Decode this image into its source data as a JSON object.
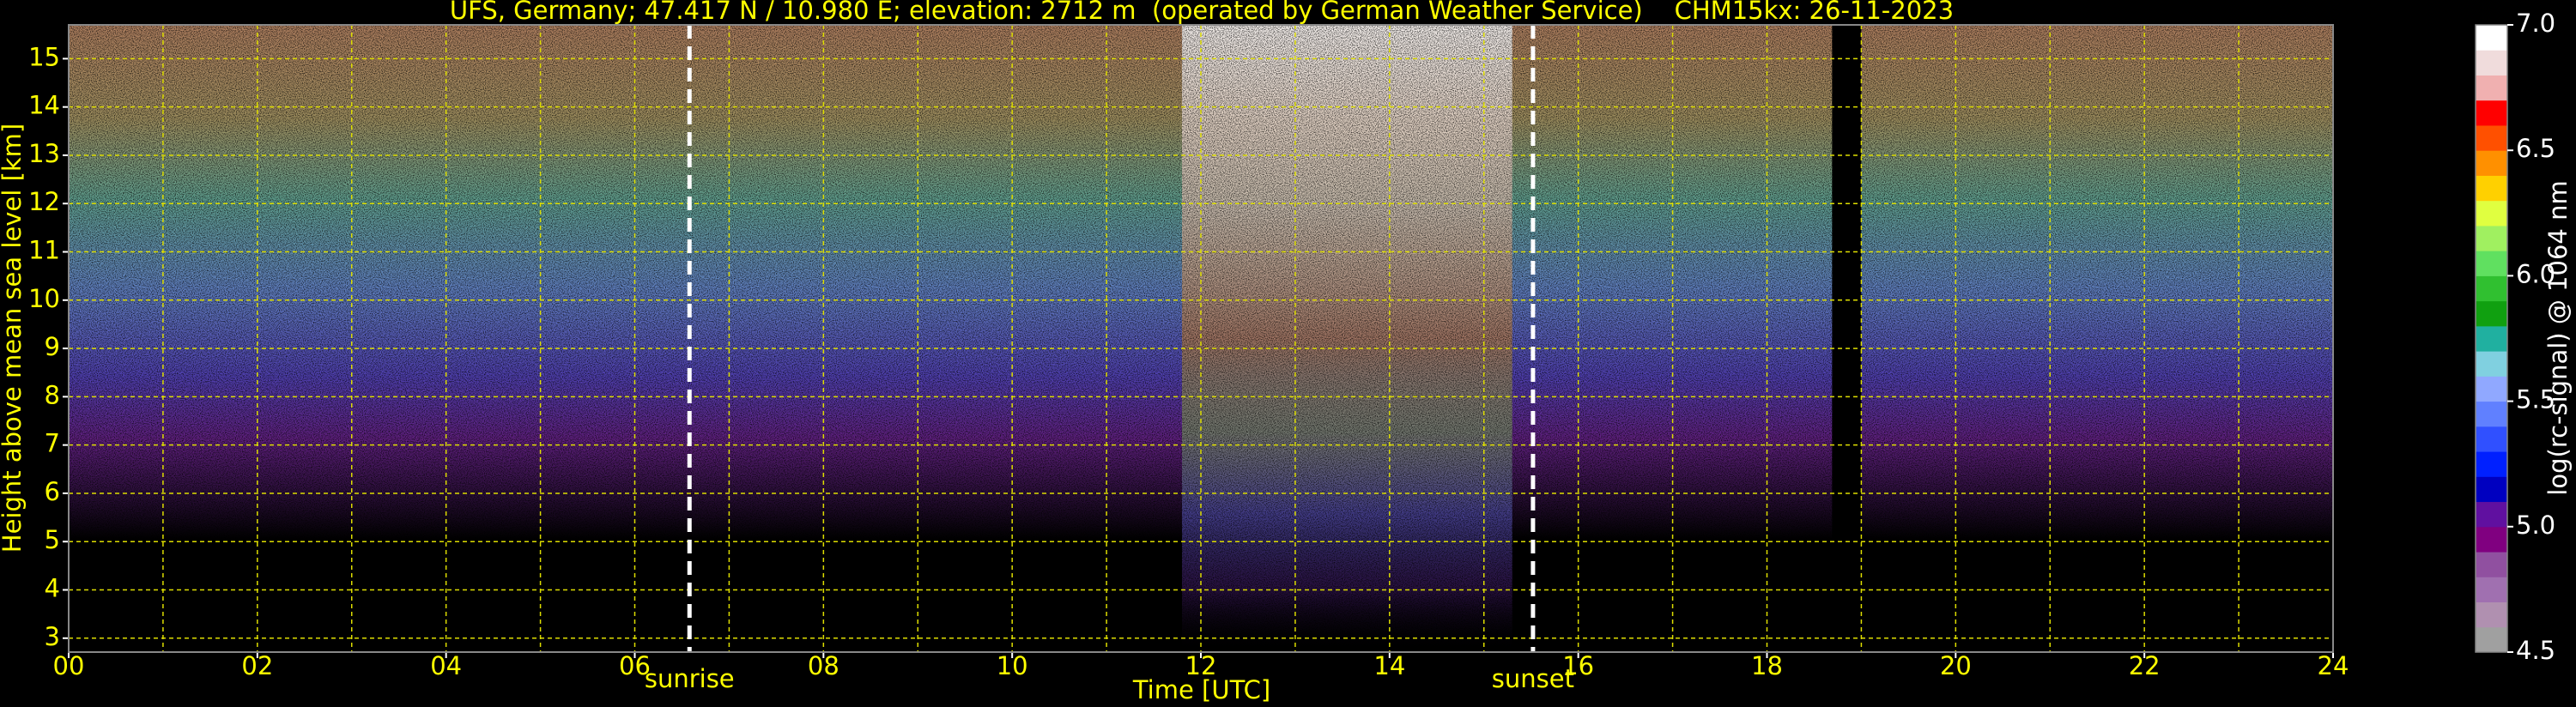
{
  "chart_data": {
    "type": "heatmap",
    "title": "UFS, Germany; 47.417 N / 10.980 E; elevation: 2712 m  (operated by German Weather Service)    CHM15kx: 26-11-2023",
    "x_label": "Time [UTC]",
    "y_label": "Height above mean sea level [km]",
    "xlim": [
      0,
      24
    ],
    "xticks": [
      {
        "value": 0,
        "label": "00"
      },
      {
        "value": 2,
        "label": "02"
      },
      {
        "value": 4,
        "label": "04"
      },
      {
        "value": 6,
        "label": "06"
      },
      {
        "value": 8,
        "label": "08"
      },
      10,
      12,
      14,
      16,
      18,
      20,
      22,
      24
    ],
    "x_minor_grid": [
      1,
      3,
      5,
      7,
      9,
      11,
      13,
      15,
      17,
      19,
      21,
      23
    ],
    "ylim": [
      2.712,
      15.7
    ],
    "yticks": [
      3,
      4,
      5,
      6,
      7,
      8,
      9,
      10,
      11,
      12,
      13,
      14,
      15
    ],
    "grid": true,
    "annotations": [
      {
        "text": "sunrise",
        "x": 6.58
      },
      {
        "text": "sunset",
        "x": 15.52
      }
    ],
    "missing_data": [
      18.69,
      19.0
    ],
    "colorbar": {
      "label": "log(rc-signal) @ 1064 nm",
      "lim": [
        4.5,
        7.0
      ],
      "ticks": [
        4.5,
        {
          "value": 5,
          "label": "5.0"
        },
        5.5,
        {
          "value": 6,
          "label": "6.0"
        },
        6.5,
        {
          "value": 7,
          "label": "7.0"
        }
      ],
      "colors": [
        "#a0a0a0",
        "#b090b0",
        "#a070b0",
        "#9050a0",
        "#800080",
        "#6010a0",
        "#0000c0",
        "#0020ff",
        "#3050ff",
        "#6080ff",
        "#90a8ff",
        "#80d0e0",
        "#20b0a0",
        "#10a010",
        "#30c030",
        "#60e060",
        "#a0f060",
        "#e0ff40",
        "#ffd000",
        "#ff9000",
        "#ff5000",
        "#ff0000",
        "#f0b0b0",
        "#f0dcdc",
        "#ffffff"
      ]
    }
  }
}
